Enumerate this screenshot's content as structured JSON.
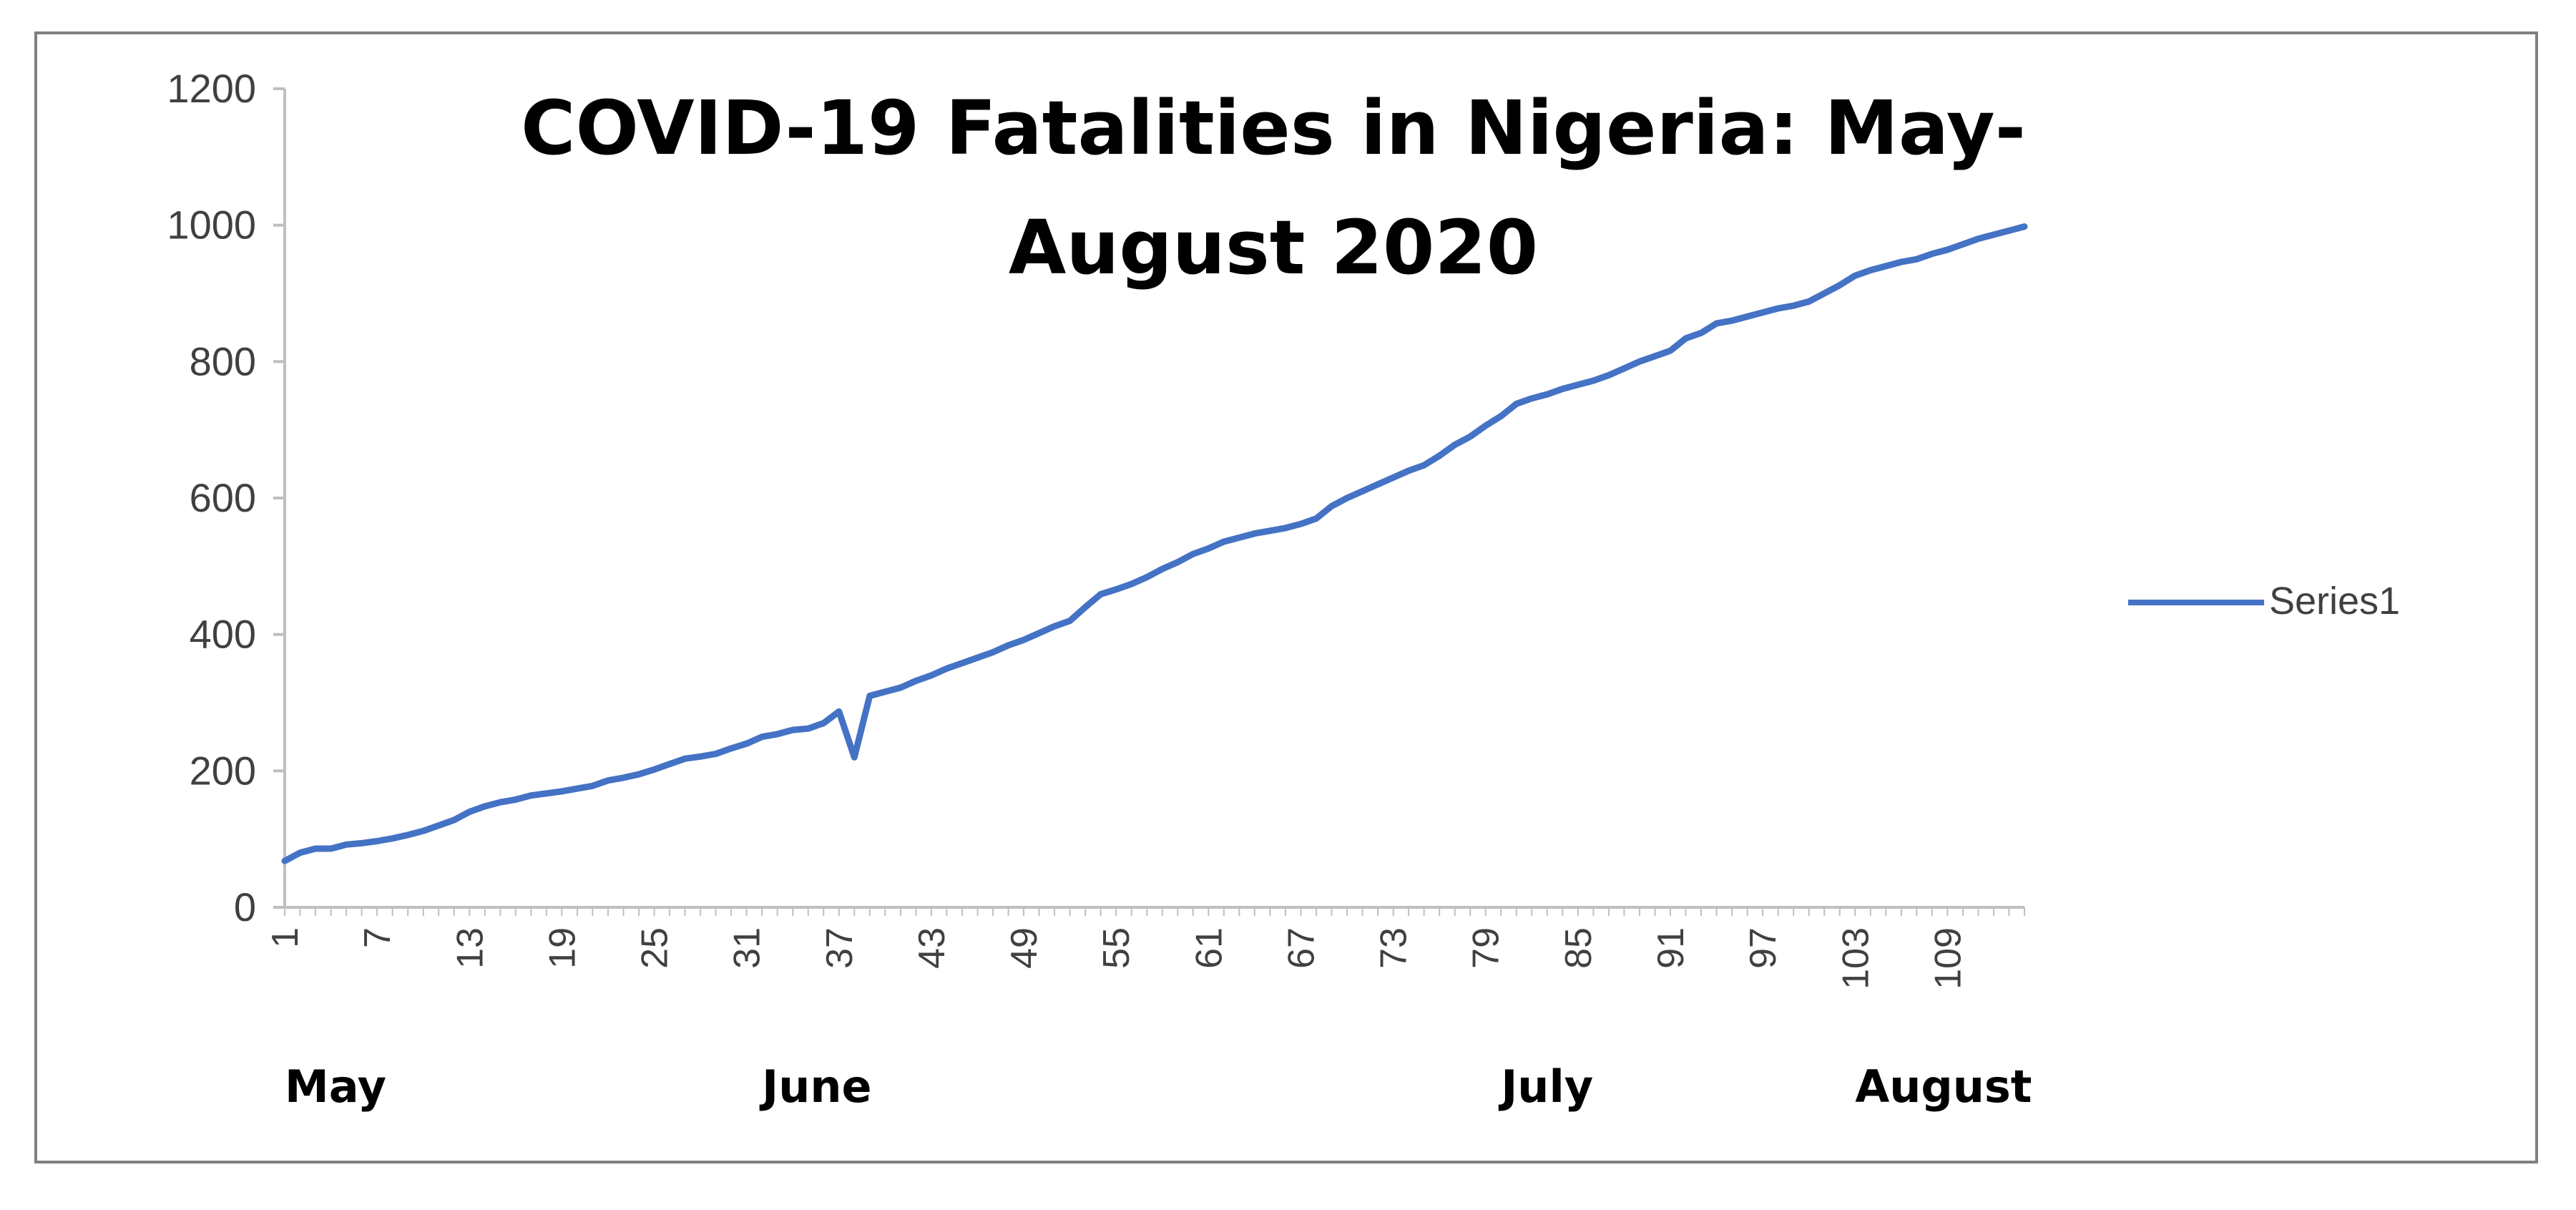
{
  "chart_data": {
    "type": "line",
    "title_lines": [
      "COVID-19 Fatalities in Nigeria: May-",
      "August 2020"
    ],
    "xlabel": "",
    "ylabel": "",
    "ylim": [
      0,
      1200
    ],
    "y_ticks": [
      0,
      200,
      400,
      600,
      800,
      1000,
      1200
    ],
    "x_range": [
      1,
      114
    ],
    "x_tick_labels": [
      1,
      7,
      13,
      19,
      25,
      31,
      37,
      43,
      49,
      55,
      61,
      67,
      73,
      79,
      85,
      91,
      97,
      103,
      109
    ],
    "month_labels": [
      {
        "text": "May",
        "at": 1
      },
      {
        "text": "June",
        "at": 32
      },
      {
        "text": "July",
        "at": 80
      },
      {
        "text": "August",
        "at": 103
      }
    ],
    "legend_position": "right",
    "grid": false,
    "colors": {
      "series": "#4472c4",
      "axis": "#bfbfbf",
      "frame": "#7f7f7f"
    },
    "series": [
      {
        "name": "Series1",
        "x": [
          1,
          2,
          3,
          4,
          5,
          6,
          7,
          8,
          9,
          10,
          11,
          12,
          13,
          14,
          15,
          16,
          17,
          18,
          19,
          20,
          21,
          22,
          23,
          24,
          25,
          26,
          27,
          28,
          29,
          30,
          31,
          32,
          33,
          34,
          35,
          36,
          37,
          38,
          39,
          40,
          41,
          42,
          43,
          44,
          45,
          46,
          47,
          48,
          49,
          50,
          51,
          52,
          53,
          54,
          55,
          56,
          57,
          58,
          59,
          60,
          61,
          62,
          63,
          64,
          65,
          66,
          67,
          68,
          69,
          70,
          71,
          72,
          73,
          74,
          75,
          76,
          77,
          78,
          79,
          80,
          81,
          82,
          83,
          84,
          85,
          86,
          87,
          88,
          89,
          90,
          91,
          92,
          93,
          94,
          95,
          96,
          97,
          98,
          99,
          100,
          101,
          102,
          103,
          104,
          105,
          106,
          107,
          108,
          109,
          110,
          111,
          112,
          113,
          114
        ],
        "values": [
          68,
          80,
          86,
          86,
          92,
          94,
          97,
          101,
          106,
          112,
          120,
          128,
          140,
          148,
          154,
          158,
          164,
          167,
          170,
          174,
          178,
          186,
          190,
          195,
          202,
          210,
          218,
          221,
          225,
          233,
          240,
          250,
          254,
          260,
          262,
          270,
          287,
          220,
          310,
          316,
          322,
          332,
          340,
          350,
          358,
          366,
          374,
          384,
          392,
          402,
          412,
          420,
          440,
          459,
          466,
          474,
          484,
          496,
          506,
          518,
          526,
          536,
          542,
          548,
          552,
          556,
          562,
          570,
          588,
          600,
          610,
          620,
          630,
          640,
          648,
          662,
          678,
          690,
          706,
          720,
          738,
          746,
          752,
          760,
          766,
          772,
          780,
          790,
          800,
          808,
          816,
          834,
          842,
          856,
          860,
          866,
          872,
          878,
          882,
          888,
          900,
          912,
          926,
          934,
          940,
          946,
          950,
          958,
          964,
          972,
          980,
          986,
          992,
          998
        ]
      }
    ]
  }
}
